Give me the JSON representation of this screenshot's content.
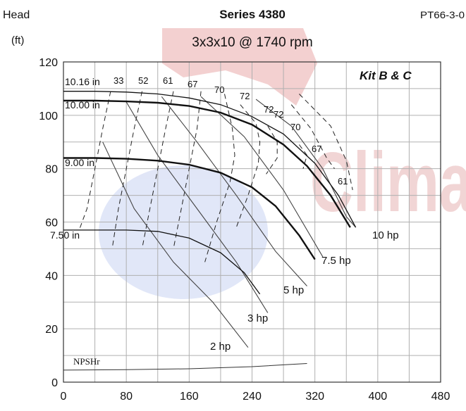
{
  "chart_data": {
    "type": "line",
    "title": "Series 4380",
    "subtitle": "3x3x10 @ 1740 rpm",
    "code": "PT66-3-0",
    "kit": "Kit B & C",
    "ylabel": "Head",
    "yunit": "(ft)",
    "xlim": [
      0,
      480
    ],
    "ylim": [
      0,
      120
    ],
    "xticks": [
      "0",
      "80",
      "160",
      "240",
      "320",
      "400",
      "480"
    ],
    "yticks": [
      "0",
      "20",
      "40",
      "60",
      "80",
      "100",
      "120"
    ],
    "grid": true,
    "colors": {
      "curve": "#111111",
      "grid": "#b0b0b0",
      "watermark_red": "#c94b4b",
      "watermark_blue": "#8aa0d8"
    },
    "series": [
      {
        "name": "10.16 in",
        "values": [
          [
            0,
            109
          ],
          [
            40,
            109
          ],
          [
            80,
            108.7
          ],
          [
            120,
            108
          ],
          [
            160,
            106.5
          ],
          [
            200,
            104
          ],
          [
            240,
            99.5
          ],
          [
            280,
            93
          ],
          [
            320,
            82
          ],
          [
            350,
            70
          ],
          [
            372,
            58
          ]
        ]
      },
      {
        "name": "10.00 in",
        "values": [
          [
            0,
            105.5
          ],
          [
            40,
            105.5
          ],
          [
            80,
            105.2
          ],
          [
            120,
            104.7
          ],
          [
            160,
            103.5
          ],
          [
            200,
            101
          ],
          [
            240,
            96.5
          ],
          [
            280,
            89
          ],
          [
            310,
            81
          ],
          [
            340,
            70
          ],
          [
            365,
            58
          ]
        ]
      },
      {
        "name": "9.00 in",
        "values": [
          [
            0,
            84
          ],
          [
            40,
            84
          ],
          [
            80,
            83.7
          ],
          [
            120,
            83
          ],
          [
            160,
            81.5
          ],
          [
            200,
            78.5
          ],
          [
            240,
            73
          ],
          [
            270,
            66
          ],
          [
            300,
            55
          ],
          [
            320,
            46
          ]
        ]
      },
      {
        "name": "7.50 in",
        "values": [
          [
            0,
            57
          ],
          [
            40,
            57
          ],
          [
            80,
            57
          ],
          [
            120,
            56.5
          ],
          [
            160,
            54
          ],
          [
            200,
            48.5
          ],
          [
            230,
            41
          ],
          [
            250,
            33
          ]
        ]
      }
    ],
    "power_lines": [
      {
        "name": "10 hp",
        "values": [
          [
            245,
            106
          ],
          [
            290,
            96
          ],
          [
            330,
            80
          ],
          [
            360,
            62
          ],
          [
            372,
            58
          ]
        ]
      },
      {
        "name": "7.5 hp",
        "values": [
          [
            175,
            107
          ],
          [
            230,
            92
          ],
          [
            280,
            72
          ],
          [
            330,
            47
          ]
        ]
      },
      {
        "name": "5 hp",
        "values": [
          [
            125,
            107
          ],
          [
            170,
            90
          ],
          [
            220,
            70
          ],
          [
            270,
            49
          ],
          [
            310,
            36
          ]
        ]
      },
      {
        "name": "3 hp",
        "values": [
          [
            80,
            105
          ],
          [
            120,
            85
          ],
          [
            170,
            65
          ],
          [
            220,
            45
          ],
          [
            260,
            26
          ]
        ]
      },
      {
        "name": "2 hp",
        "values": [
          [
            50,
            90
          ],
          [
            90,
            65
          ],
          [
            140,
            45
          ],
          [
            190,
            30
          ],
          [
            235,
            13
          ]
        ]
      }
    ],
    "efficiency_labels": [
      "33",
      "52",
      "61",
      "67",
      "70",
      "72",
      "72",
      "72",
      "70",
      "67",
      "61"
    ],
    "efficiency_curves": [
      {
        "label": "33",
        "values": [
          [
            60,
            109
          ],
          [
            50,
            95
          ],
          [
            40,
            80
          ],
          [
            30,
            65
          ],
          [
            20,
            57
          ]
        ]
      },
      {
        "label": "52",
        "values": [
          [
            100,
            109
          ],
          [
            90,
            95
          ],
          [
            80,
            80
          ],
          [
            70,
            65
          ],
          [
            62,
            50
          ]
        ]
      },
      {
        "label": "61",
        "values": [
          [
            140,
            109
          ],
          [
            130,
            95
          ],
          [
            120,
            80
          ],
          [
            110,
            65
          ],
          [
            100,
            50
          ]
        ]
      },
      {
        "label": "67",
        "values": [
          [
            175,
            109
          ],
          [
            170,
            95
          ],
          [
            160,
            80
          ],
          [
            150,
            65
          ],
          [
            140,
            50
          ]
        ]
      },
      {
        "label": "70",
        "values": [
          [
            205,
            108
          ],
          [
            215,
            95
          ],
          [
            218,
            85
          ],
          [
            212,
            75
          ],
          [
            195,
            60
          ],
          [
            180,
            45
          ]
        ]
      },
      {
        "label": "72",
        "values": [
          [
            225,
            104
          ],
          [
            245,
            97
          ],
          [
            250,
            90
          ],
          [
            248,
            82
          ],
          [
            235,
            70
          ],
          [
            220,
            58
          ]
        ]
      },
      {
        "label": "72",
        "values": [
          [
            260,
            96
          ],
          [
            272,
            90
          ],
          [
            272,
            84
          ],
          [
            258,
            78
          ]
        ]
      },
      {
        "label": "70",
        "values": [
          [
            300,
            89
          ],
          [
            310,
            85
          ],
          [
            305,
            80
          ]
        ]
      },
      {
        "label": "67",
        "values": [
          [
            290,
            104
          ],
          [
            315,
            95
          ],
          [
            335,
            84
          ],
          [
            345,
            80
          ]
        ]
      },
      {
        "label": "61",
        "values": [
          [
            300,
            108
          ],
          [
            340,
            96
          ],
          [
            360,
            83
          ],
          [
            368,
            72
          ]
        ]
      }
    ],
    "npshr_label": "NPSHr",
    "npshr": {
      "values": [
        [
          0,
          4.5
        ],
        [
          80,
          4.7
        ],
        [
          160,
          5
        ],
        [
          240,
          5.8
        ],
        [
          280,
          6.5
        ],
        [
          310,
          7
        ]
      ]
    }
  }
}
